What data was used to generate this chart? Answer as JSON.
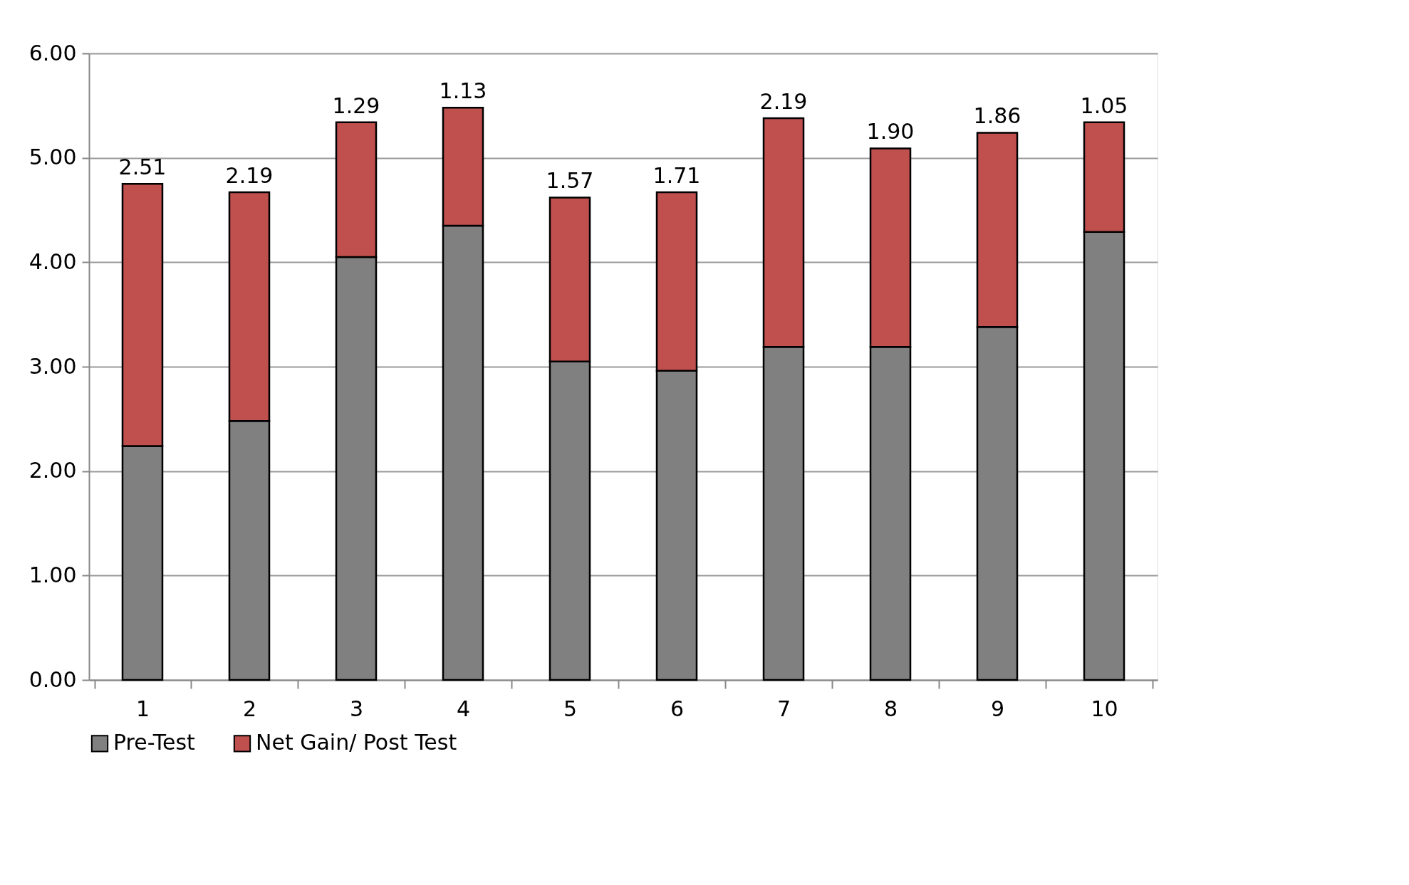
{
  "chart_data": {
    "type": "bar",
    "stacked": true,
    "categories": [
      "1",
      "2",
      "3",
      "4",
      "5",
      "6",
      "7",
      "8",
      "9",
      "10"
    ],
    "series": [
      {
        "name": "Pre-Test",
        "color": "#808080",
        "values": [
          2.24,
          2.48,
          4.05,
          4.35,
          3.05,
          2.96,
          3.19,
          3.19,
          3.38,
          4.29
        ]
      },
      {
        "name": "Net Gain/ Post Test",
        "color": "#c0504d",
        "values": [
          2.51,
          2.19,
          1.29,
          1.13,
          1.57,
          1.71,
          2.19,
          1.9,
          1.86,
          1.05
        ],
        "value_labels": [
          "2.51",
          "2.19",
          "1.29",
          "1.13",
          "1.57",
          "1.71",
          "2.19",
          "1.90",
          "1.86",
          "1.05"
        ]
      }
    ],
    "ylim": [
      0,
      6
    ],
    "yticks": [
      {
        "value": 0,
        "label": "0.00"
      },
      {
        "value": 1,
        "label": "1.00"
      },
      {
        "value": 2,
        "label": "2.00"
      },
      {
        "value": 3,
        "label": "3.00"
      },
      {
        "value": 4,
        "label": "4.00"
      },
      {
        "value": 5,
        "label": "5.00"
      },
      {
        "value": 6,
        "label": "6.00"
      }
    ],
    "grid": "y",
    "legend": "bottom"
  }
}
